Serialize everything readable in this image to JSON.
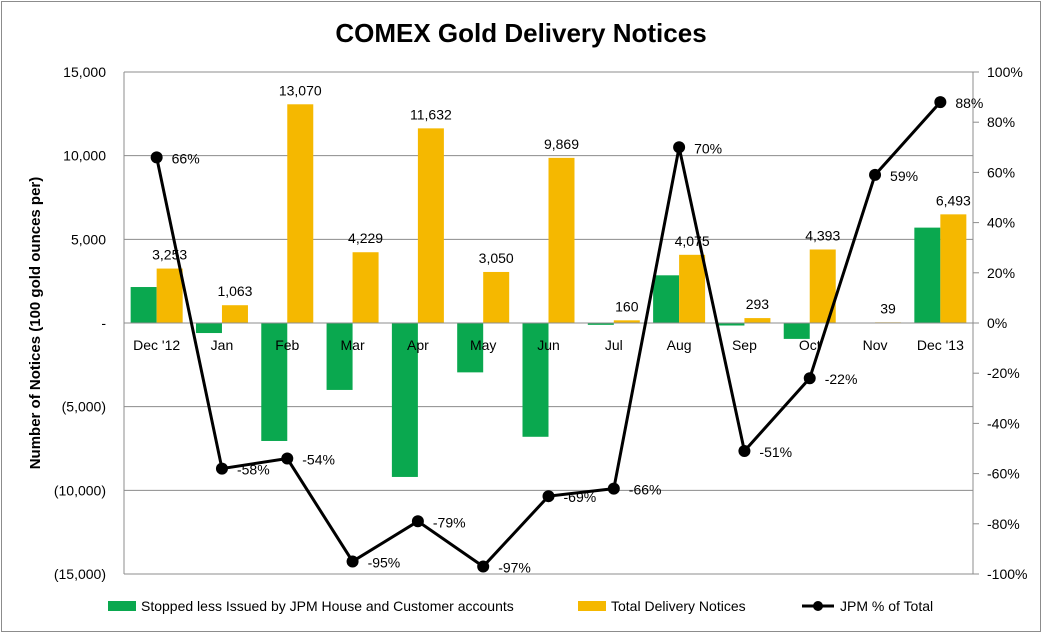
{
  "chart_data": {
    "type": "bar",
    "title": "COMEX Gold Delivery Notices",
    "ylabel": "Number of Notices (100 gold ounces per)",
    "y2label": "",
    "categories": [
      "Dec '12",
      "Jan",
      "Feb",
      "Mar",
      "Apr",
      "May",
      "Jun",
      "Jul",
      "Aug",
      "Sep",
      "Oct",
      "Nov",
      "Dec '13"
    ],
    "ylim": [
      -15000,
      15000
    ],
    "y_ticks": [
      15000,
      10000,
      5000,
      0,
      -5000,
      -10000,
      -15000
    ],
    "y_tick_labels": [
      "15,000",
      "10,000",
      "5,000",
      "-",
      "(5,000)",
      "(10,000)",
      "(15,000)"
    ],
    "y2lim": [
      -100,
      100
    ],
    "y2_ticks": [
      100,
      80,
      60,
      40,
      20,
      0,
      -20,
      -40,
      -60,
      -80,
      -100
    ],
    "y2_tick_labels": [
      "100%",
      "80%",
      "60%",
      "40%",
      "20%",
      "0%",
      "-20%",
      "-40%",
      "-60%",
      "-80%",
      "-100%"
    ],
    "grid": true,
    "legend_position": "bottom",
    "series": [
      {
        "name": "Stopped less Issued by JPM House and Customer accounts",
        "type": "bar",
        "axis": "left",
        "color": "#0aa84f",
        "values": [
          2150,
          -600,
          -7050,
          -4000,
          -9200,
          -2950,
          -6800,
          -110,
          2850,
          -150,
          -950,
          0,
          5700
        ]
      },
      {
        "name": "Total Delivery Notices",
        "type": "bar",
        "axis": "left",
        "color": "#f5b800",
        "values": [
          3253,
          1063,
          13070,
          4229,
          11632,
          3050,
          9869,
          160,
          4075,
          293,
          4393,
          39,
          6493
        ],
        "labels": [
          "3,253",
          "1,063",
          "13,070",
          "4,229",
          "11,632",
          "3,050",
          "9,869",
          "160",
          "4,075",
          "293",
          "4,393",
          "39",
          "6,493"
        ]
      },
      {
        "name": "JPM % of Total",
        "type": "line",
        "axis": "right",
        "color": "#000000",
        "values": [
          66,
          -58,
          -54,
          -95,
          -79,
          -97,
          -69,
          -66,
          70,
          -51,
          -22,
          59,
          88
        ],
        "labels": [
          "66%",
          "-58%",
          "-54%",
          "-95%",
          "-79%",
          "-97%",
          "-69%",
          "-66%",
          "70%",
          "-51%",
          "-22%",
          "59%",
          "88%"
        ]
      }
    ]
  }
}
